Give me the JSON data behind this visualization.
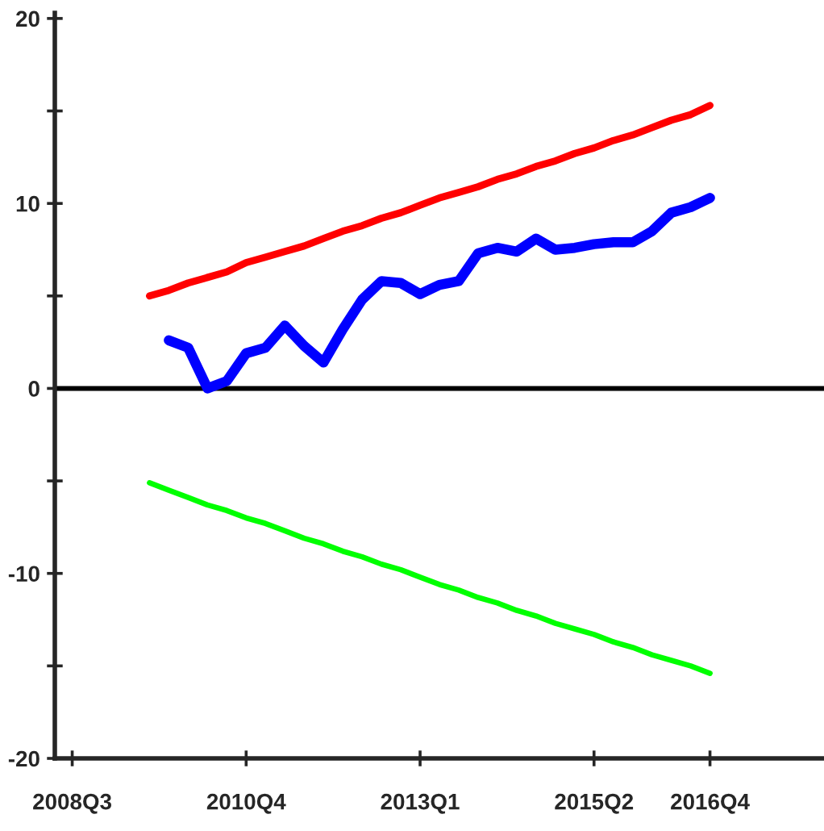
{
  "chart_data": {
    "type": "line",
    "categories": [
      "2008Q3",
      null,
      null,
      null,
      null,
      null,
      null,
      null,
      null,
      "2010Q4",
      null,
      null,
      null,
      null,
      null,
      null,
      null,
      null,
      "2013Q1",
      null,
      null,
      null,
      null,
      null,
      null,
      null,
      null,
      "2015Q2",
      null,
      null,
      null,
      null,
      null,
      "2016Q4",
      null,
      null,
      null,
      null,
      null
    ],
    "ylim": [
      -20,
      20.3
    ],
    "yticks": [
      -20,
      {
        "value": -15,
        "label": null
      },
      -10,
      {
        "value": -5,
        "label": null
      },
      0,
      {
        "value": 5,
        "label": null
      },
      10,
      {
        "value": 15,
        "label": null
      },
      20
    ],
    "ref_lines": [
      {
        "axis": "y",
        "value": 0,
        "color": "#000000"
      }
    ],
    "series": [
      {
        "color": "#ff0000",
        "values": [
          null,
          null,
          null,
          null,
          5.0,
          5.3,
          5.7,
          6.0,
          6.3,
          6.8,
          7.1,
          7.4,
          7.7,
          8.1,
          8.5,
          8.8,
          9.2,
          9.5,
          9.9,
          10.3,
          10.6,
          10.9,
          11.3,
          11.6,
          12.0,
          12.3,
          12.7,
          13.0,
          13.4,
          13.7,
          14.1,
          14.5,
          14.8,
          15.3,
          null,
          null,
          null,
          null,
          null
        ]
      },
      {
        "color": "#0000ff",
        "values": [
          null,
          null,
          null,
          null,
          null,
          2.6,
          2.2,
          0.0,
          0.4,
          1.9,
          2.2,
          3.4,
          2.3,
          1.4,
          3.2,
          4.8,
          5.8,
          5.7,
          5.1,
          5.6,
          5.8,
          7.3,
          7.6,
          7.4,
          8.1,
          7.5,
          7.6,
          7.8,
          7.9,
          7.9,
          8.5,
          9.5,
          9.8,
          10.3,
          null,
          null,
          null,
          null,
          null
        ]
      },
      {
        "color": "#00ff00",
        "values": [
          null,
          null,
          null,
          null,
          -5.1,
          -5.5,
          -5.9,
          -6.3,
          -6.6,
          -7.0,
          -7.3,
          -7.7,
          -8.1,
          -8.4,
          -8.8,
          -9.1,
          -9.5,
          -9.8,
          -10.2,
          -10.6,
          -10.9,
          -11.3,
          -11.6,
          -12.0,
          -12.3,
          -12.7,
          -13.0,
          -13.3,
          -13.7,
          -14.0,
          -14.4,
          -14.7,
          -15.0,
          -15.4,
          null,
          null,
          null,
          null,
          null
        ]
      }
    ]
  }
}
